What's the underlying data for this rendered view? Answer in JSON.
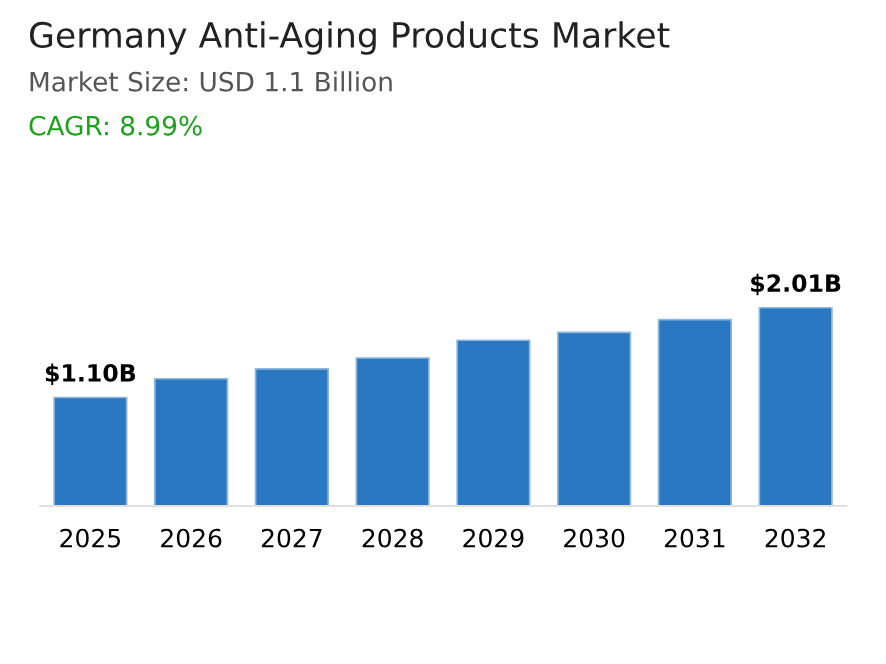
{
  "chart_data": {
    "type": "bar",
    "title": "Germany Anti-Aging Products Market",
    "subtitle": "Market Size: USD 1.1 Billion",
    "annotations": [
      "CAGR: 8.99%"
    ],
    "categories": [
      "2025",
      "2026",
      "2027",
      "2028",
      "2029",
      "2030",
      "2031",
      "2032"
    ],
    "values": [
      1.1,
      1.29,
      1.39,
      1.5,
      1.68,
      1.76,
      1.89,
      2.01
    ],
    "value_labels": [
      "$1.10B",
      null,
      null,
      null,
      null,
      null,
      null,
      "$2.01B"
    ],
    "color": "#2b78c2",
    "grid": false,
    "legend": false,
    "tick_labels": "x"
  }
}
